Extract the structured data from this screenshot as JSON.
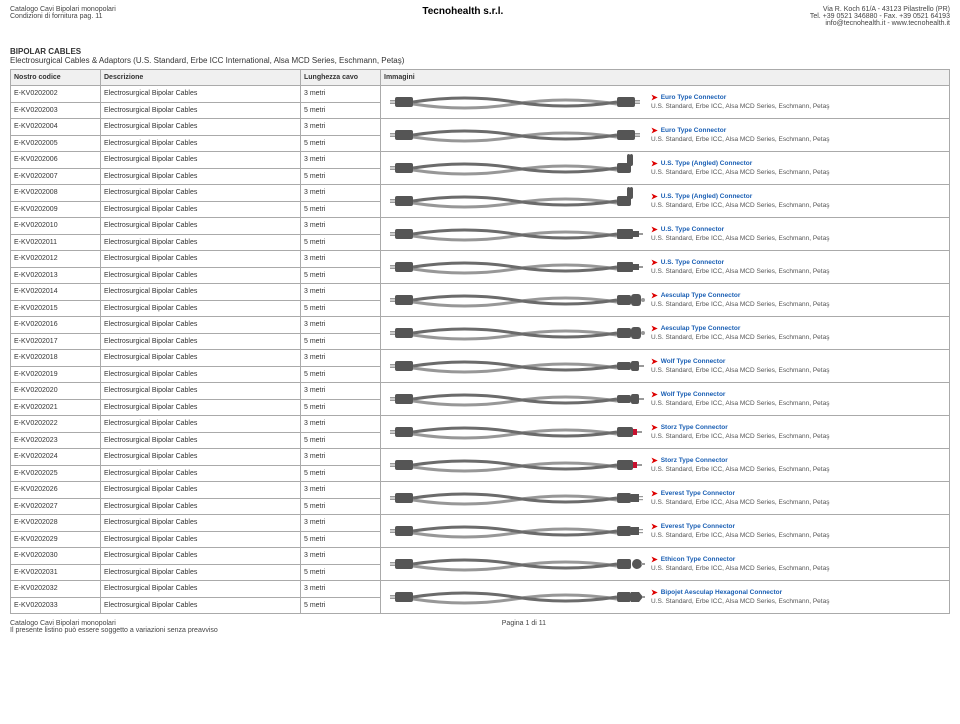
{
  "header": {
    "left_line1": "Catalogo Cavi Bipolari monopolari",
    "left_line2": "Condizioni di fornitura pag. 11",
    "center": "Tecnohealth s.r.l.",
    "right_line1": "Via R. Koch 61/A - 43123 Pilastrello (PR)",
    "right_line2": "Tel. +39 0521 346880 - Fax. +39 0521 64193",
    "right_line3": "info@tecnohealth.it - www.tecnohealth.it"
  },
  "section": {
    "title": "BIPOLAR CABLES",
    "subtitle": "Electrosurgical Cables & Adaptors (U.S. Standard, Erbe ICC International, Alsa MCD Series, Eschmann, Petaş)"
  },
  "columns": {
    "c1": "Nostro codice",
    "c2": "Descrizione",
    "c3": "Lunghezza cavo",
    "c4": "Immagini"
  },
  "desc": "Electrosurgical Bipolar Cables",
  "len3": "3 metri",
  "len5": "5 metri",
  "sub_text": "U.S. Standard, Erbe ICC, Alsa MCD Series, Eschmann, Petaş",
  "groups": [
    {
      "codeA": "E-KV0202002",
      "codeB": "E-KV0202003",
      "title": "Euro Type Connector",
      "plugA": "euro",
      "plugB": "euro"
    },
    {
      "codeA": "E-KV0202004",
      "codeB": "E-KV0202005",
      "title": "Euro Type Connector",
      "plugA": "euro",
      "plugB": "euro"
    },
    {
      "codeA": "E-KV0202006",
      "codeB": "E-KV0202007",
      "title": "U.S. Type (Angled) Connector",
      "plugA": "euro",
      "plugB": "angled"
    },
    {
      "codeA": "E-KV0202008",
      "codeB": "E-KV0202009",
      "title": "U.S. Type (Angled) Connector",
      "plugA": "euro",
      "plugB": "angled"
    },
    {
      "codeA": "E-KV0202010",
      "codeB": "E-KV0202011",
      "title": "U.S. Type Connector",
      "plugA": "euro",
      "plugB": "us"
    },
    {
      "codeA": "E-KV0202012",
      "codeB": "E-KV0202013",
      "title": "U.S. Type Connector",
      "plugA": "euro",
      "plugB": "us"
    },
    {
      "codeA": "E-KV0202014",
      "codeB": "E-KV0202015",
      "title": "Aesculap Type Connector",
      "plugA": "euro",
      "plugB": "aesculap"
    },
    {
      "codeA": "E-KV0202016",
      "codeB": "E-KV0202017",
      "title": "Aesculap Type Connector",
      "plugA": "euro",
      "plugB": "aesculap"
    },
    {
      "codeA": "E-KV0202018",
      "codeB": "E-KV0202019",
      "title": "Wolf Type Connector",
      "plugA": "euro",
      "plugB": "wolf"
    },
    {
      "codeA": "E-KV0202020",
      "codeB": "E-KV0202021",
      "title": "Wolf Type Connector",
      "plugA": "euro",
      "plugB": "wolf"
    },
    {
      "codeA": "E-KV0202022",
      "codeB": "E-KV0202023",
      "title": "Storz Type Connector",
      "plugA": "euro",
      "plugB": "storz"
    },
    {
      "codeA": "E-KV0202024",
      "codeB": "E-KV0202025",
      "title": "Storz Type Connector",
      "plugA": "euro",
      "plugB": "storz"
    },
    {
      "codeA": "E-KV0202026",
      "codeB": "E-KV0202027",
      "title": "Everest Type Connector",
      "plugA": "euro",
      "plugB": "everest"
    },
    {
      "codeA": "E-KV0202028",
      "codeB": "E-KV0202029",
      "title": "Everest Type Connector",
      "plugA": "euro",
      "plugB": "everest"
    },
    {
      "codeA": "E-KV0202030",
      "codeB": "E-KV0202031",
      "title": "Ethicon Type Connector",
      "plugA": "euro",
      "plugB": "ethicon"
    },
    {
      "codeA": "E-KV0202032",
      "codeB": "E-KV0202033",
      "title": "Bipojet Aesculap Hexagonal Connector",
      "plugA": "euro",
      "plugB": "hex"
    }
  ],
  "footer": {
    "left1": "Catalogo Cavi Bipolari monopolari",
    "left2": "Il presente listino può essere soggetto a variazioni senza preavviso",
    "center": "Pagina 1 di 11"
  },
  "colors": {
    "cable": "#6b6b6b",
    "plug": "#555",
    "pin": "#999",
    "red": "#c8102e"
  }
}
